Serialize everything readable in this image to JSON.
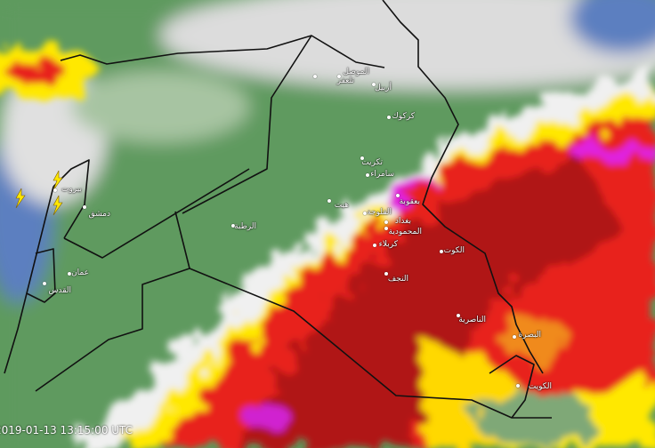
{
  "timestamp": "2019-01-13 13:15:00 UTC",
  "colors": {
    "land": "#5e9a5e",
    "sea": "#5b7fc0",
    "cloud": "#e8e8e8",
    "low": "#ffe800",
    "mid": "#e8201c",
    "high": "#8a0f10",
    "peak": "#e020e0"
  },
  "icons": [
    "lightning-icon"
  ],
  "cities": [
    {
      "name": "تلعفر"
    },
    {
      "name": "الموصل"
    },
    {
      "name": "أربيل"
    },
    {
      "name": "كركوك"
    },
    {
      "name": "تكريت"
    },
    {
      "name": "سامراء"
    },
    {
      "name": "هيت"
    },
    {
      "name": "بعقوبة"
    },
    {
      "name": "الفلوجة"
    },
    {
      "name": "بغداد"
    },
    {
      "name": "المحمودية"
    },
    {
      "name": "كربلاء"
    },
    {
      "name": "الكوت"
    },
    {
      "name": "النجف"
    },
    {
      "name": "الناصرية"
    },
    {
      "name": "البصرة"
    },
    {
      "name": "الكويت"
    },
    {
      "name": "الرطبة"
    },
    {
      "name": "بيروت"
    },
    {
      "name": "دمشق"
    },
    {
      "name": "عمان"
    },
    {
      "name": "القدس"
    }
  ]
}
